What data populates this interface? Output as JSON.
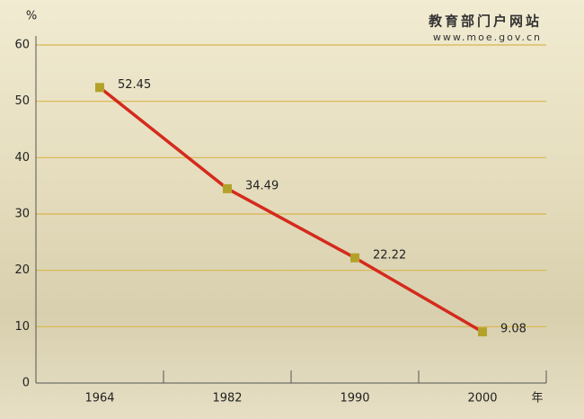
{
  "chart_data": {
    "type": "line",
    "ylabel": "%",
    "xlabel": "年",
    "watermark": [
      "教育部门户网站",
      "www.moe.gov.cn"
    ],
    "categories": [
      "1964",
      "1982",
      "1990",
      "2000"
    ],
    "series": [
      {
        "color": "#d42a1c",
        "marker_color": "#b3a22a",
        "values": [
          52.45,
          34.49,
          22.22,
          9.08
        ]
      }
    ],
    "ylim": [
      0,
      60
    ],
    "yticks": [
      0,
      10,
      20,
      30,
      40,
      50,
      60
    ],
    "grid": true,
    "grid_color": "#d8b54c"
  }
}
